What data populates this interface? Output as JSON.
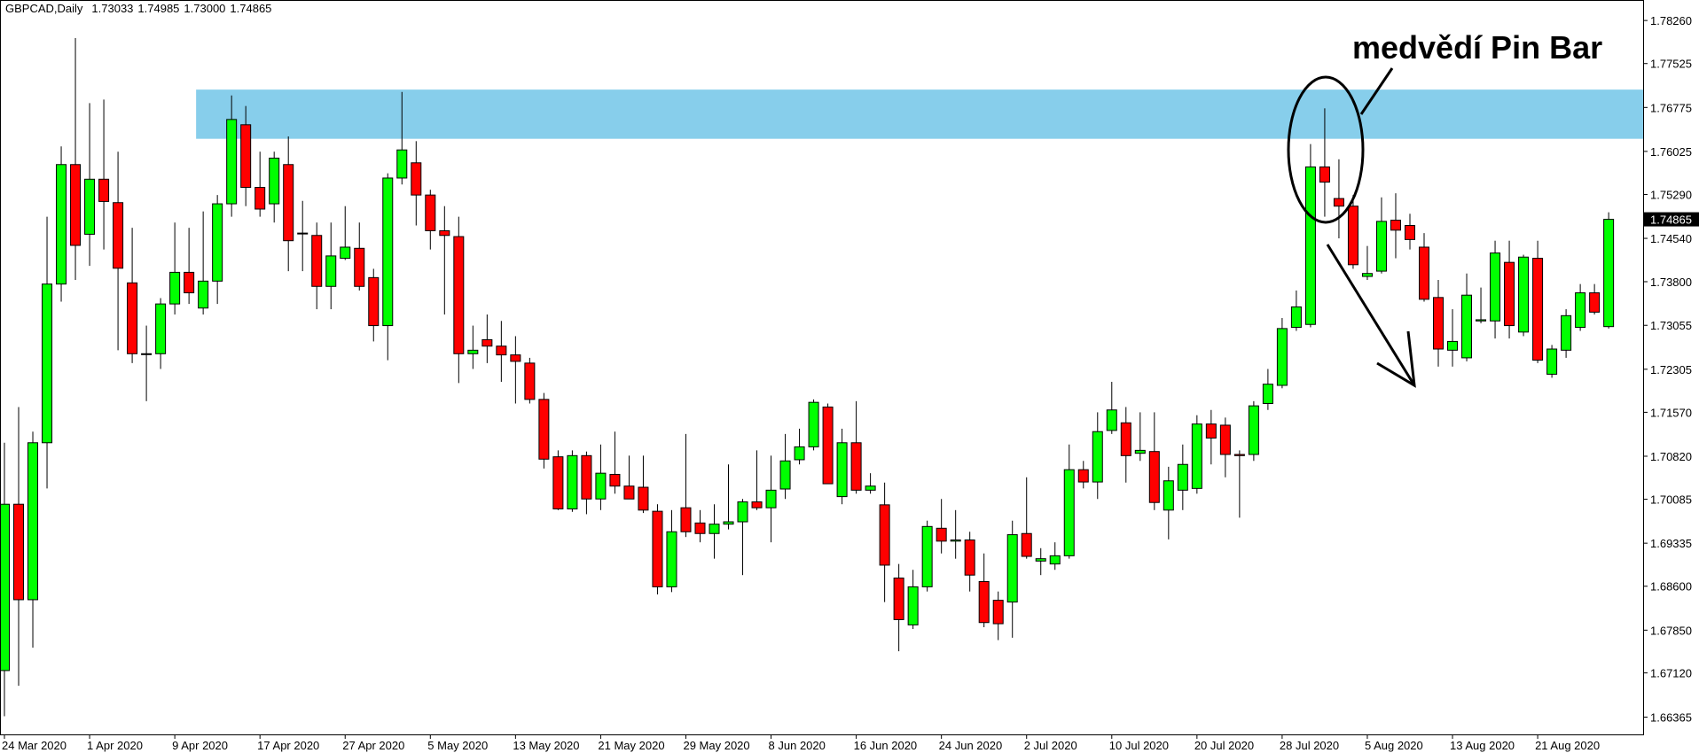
{
  "chart_data": {
    "type": "candlestick",
    "symbol": "GBPCAD,Daily",
    "header_values": [
      "1.73033",
      "1.74985",
      "1.73000",
      "1.74865"
    ],
    "categories": [
      "24 Mar 2020",
      null,
      null,
      null,
      null,
      null,
      "1 Apr 2020",
      null,
      null,
      null,
      null,
      null,
      "9 Apr 2020",
      null,
      null,
      null,
      null,
      null,
      "17 Apr 2020",
      null,
      null,
      null,
      null,
      null,
      "27 Apr 2020",
      null,
      null,
      null,
      null,
      null,
      "5 May 2020",
      null,
      null,
      null,
      null,
      null,
      "13 May 2020",
      null,
      null,
      null,
      null,
      null,
      "21 May 2020",
      null,
      null,
      null,
      null,
      null,
      "29 May 2020",
      null,
      null,
      null,
      null,
      null,
      "8 Jun 2020",
      null,
      null,
      null,
      null,
      null,
      "16 Jun 2020",
      null,
      null,
      null,
      null,
      null,
      "24 Jun 2020",
      null,
      null,
      null,
      null,
      null,
      "2 Jul 2020",
      null,
      null,
      null,
      null,
      null,
      "10 Jul 2020",
      null,
      null,
      null,
      null,
      null,
      "20 Jul 2020",
      null,
      null,
      null,
      null,
      null,
      "28 Jul 2020",
      null,
      null,
      null,
      null,
      null,
      "5 Aug 2020",
      null,
      null,
      null,
      null,
      null,
      "13 Aug 2020",
      null,
      null,
      null,
      null,
      null,
      "21 Aug 2020",
      null,
      null,
      null,
      null,
      null
    ],
    "open": [
      1.6716,
      1.7,
      1.6837,
      1.7105,
      1.7376,
      1.758,
      1.7461,
      1.7555,
      1.7515,
      1.7378,
      1.7257,
      1.7257,
      1.7342,
      1.7396,
      1.7335,
      1.7381,
      1.7513,
      1.7648,
      1.7541,
      1.7513,
      1.758,
      1.7463,
      1.7459,
      1.7372,
      1.742,
      1.7437,
      1.7387,
      1.7305,
      1.7557,
      1.7583,
      1.7528,
      1.7467,
      1.7457,
      1.7257,
      1.7281,
      1.727,
      1.7255,
      1.7241,
      1.7179,
      1.7081,
      1.6992,
      1.7083,
      1.7009,
      1.7051,
      1.7031,
      1.7029,
      1.6988,
      1.6859,
      1.6994,
      1.6968,
      1.695,
      1.6966,
      1.697,
      1.7004,
      1.6994,
      1.7026,
      1.7076,
      1.7098,
      1.7166,
      1.7013,
      1.7105,
      1.7024,
      1.6999,
      1.6874,
      1.6794,
      1.6859,
      1.6959,
      1.6937,
      1.6939,
      1.6868,
      1.6836,
      1.6833,
      1.695,
      1.6903,
      1.6898,
      1.6912,
      1.7059,
      1.7038,
      1.7126,
      1.7139,
      1.7087,
      1.709,
      1.699,
      1.7024,
      1.7027,
      1.7137,
      1.7135,
      1.7085,
      1.7085,
      1.7172,
      1.7203,
      1.7302,
      1.7307,
      1.7576,
      1.7522,
      1.7509,
      1.7389,
      1.7398,
      1.7485,
      1.7476,
      1.7439,
      1.7353,
      1.7263,
      1.725,
      1.7313,
      1.7313,
      1.7413,
      1.7294,
      1.742,
      1.7222,
      1.7263,
      1.7302,
      1.7361,
      1.73033
    ],
    "high": [
      1.7105,
      1.7166,
      1.7124,
      1.7491,
      1.7611,
      1.7796,
      1.7685,
      1.7691,
      1.7602,
      1.7472,
      1.7305,
      1.7352,
      1.7481,
      1.7472,
      1.75,
      1.7528,
      1.7698,
      1.768,
      1.7602,
      1.7602,
      1.7628,
      1.7518,
      1.7481,
      1.7481,
      1.7509,
      1.7481,
      1.7402,
      1.7565,
      1.7704,
      1.762,
      1.7537,
      1.7509,
      1.7491,
      1.7305,
      1.7324,
      1.7313,
      1.7287,
      1.725,
      1.719,
      1.7092,
      1.7092,
      1.709,
      1.7102,
      1.7124,
      1.7083,
      1.7083,
      1.7,
      1.699,
      1.712,
      1.699,
      1.7,
      1.7068,
      1.7009,
      1.7092,
      1.7083,
      1.712,
      1.7129,
      1.7179,
      1.7172,
      1.7129,
      1.7176,
      1.7053,
      1.7037,
      1.6898,
      1.6888,
      1.6972,
      1.7009,
      1.699,
      1.6953,
      1.6916,
      1.6851,
      1.6972,
      1.7046,
      1.6925,
      1.6935,
      1.7102,
      1.7074,
      1.7157,
      1.7209,
      1.7166,
      1.7157,
      1.7157,
      1.7064,
      1.7102,
      1.7152,
      1.7161,
      1.7148,
      1.7092,
      1.7176,
      1.7231,
      1.7318,
      1.7365,
      1.7615,
      1.7676,
      1.7589,
      1.7528,
      1.7441,
      1.7524,
      1.7531,
      1.7496,
      1.7463,
      1.7383,
      1.7333,
      1.7394,
      1.737,
      1.745,
      1.745,
      1.7426,
      1.745,
      1.7272,
      1.7333,
      1.7376,
      1.7376,
      1.74985
    ],
    "low": [
      1.6638,
      1.669,
      1.6755,
      1.7027,
      1.7346,
      1.7383,
      1.7407,
      1.7435,
      1.7263,
      1.7241,
      1.7176,
      1.7231,
      1.7324,
      1.7342,
      1.7324,
      1.7342,
      1.7491,
      1.7509,
      1.7491,
      1.7481,
      1.7398,
      1.7398,
      1.7333,
      1.7333,
      1.7417,
      1.7365,
      1.7278,
      1.7246,
      1.7546,
      1.7476,
      1.7435,
      1.7324,
      1.7207,
      1.7231,
      1.7241,
      1.7209,
      1.7172,
      1.7172,
      1.7061,
      1.699,
      1.6987,
      1.6983,
      1.699,
      1.7018,
      1.7009,
      1.6985,
      1.6846,
      1.685,
      1.6944,
      1.6935,
      1.6907,
      1.6957,
      1.6879,
      1.699,
      1.6935,
      1.7009,
      1.7068,
      1.7092,
      1.7035,
      1.7,
      1.7018,
      1.7018,
      1.6833,
      1.6749,
      1.6787,
      1.6851,
      1.6916,
      1.6907,
      1.6851,
      1.679,
      1.6768,
      1.6772,
      1.6907,
      1.6879,
      1.6888,
      1.6907,
      1.7027,
      1.7009,
      1.712,
      1.7037,
      1.7074,
      1.699,
      1.694,
      1.699,
      1.7018,
      1.7068,
      1.7046,
      1.6977,
      1.7074,
      1.7161,
      1.7198,
      1.7296,
      1.7302,
      1.7491,
      1.7454,
      1.7402,
      1.7383,
      1.7394,
      1.742,
      1.7435,
      1.7346,
      1.7235,
      1.7235,
      1.7244,
      1.7309,
      1.7283,
      1.7283,
      1.7287,
      1.7241,
      1.7216,
      1.725,
      1.7296,
      1.7324,
      1.73
    ],
    "close": [
      1.7,
      1.6837,
      1.7105,
      1.7376,
      1.758,
      1.7442,
      1.7555,
      1.7517,
      1.7403,
      1.7257,
      1.7257,
      1.7342,
      1.7396,
      1.7361,
      1.7381,
      1.7513,
      1.7657,
      1.7541,
      1.7504,
      1.7591,
      1.745,
      1.7463,
      1.7372,
      1.7424,
      1.7439,
      1.7372,
      1.7305,
      1.7557,
      1.7605,
      1.7528,
      1.7467,
      1.7459,
      1.7257,
      1.7263,
      1.727,
      1.7255,
      1.7244,
      1.7179,
      1.7077,
      1.6992,
      1.7083,
      1.7009,
      1.7053,
      1.7031,
      1.7009,
      1.699,
      1.6859,
      1.6953,
      1.6953,
      1.695,
      1.6966,
      1.697,
      1.7004,
      1.6994,
      1.7024,
      1.7074,
      1.7098,
      1.7174,
      1.7035,
      1.7105,
      1.7024,
      1.7031,
      1.6896,
      1.6803,
      1.6859,
      1.6962,
      1.6937,
      1.6939,
      1.6879,
      1.6798,
      1.6796,
      1.6948,
      1.6911,
      1.6907,
      1.6912,
      1.7059,
      1.7038,
      1.7124,
      1.7161,
      1.7083,
      1.7092,
      1.7003,
      1.704,
      1.7068,
      1.7137,
      1.7113,
      1.7085,
      1.7083,
      1.7168,
      1.7205,
      1.73,
      1.7337,
      1.7576,
      1.755,
      1.7509,
      1.7409,
      1.7394,
      1.7483,
      1.7468,
      1.7452,
      1.735,
      1.7265,
      1.7278,
      1.7357,
      1.7315,
      1.7429,
      1.7305,
      1.7422,
      1.7246,
      1.7265,
      1.7322,
      1.7361,
      1.7328,
      1.74865
    ],
    "up_color": "#00ff00",
    "down_color": "#ff0000",
    "ylim": [
      1.6607,
      1.7861
    ],
    "yticks": [
      {
        "value": 1.7826,
        "label": "1.78260"
      },
      {
        "value": 1.77525,
        "label": "1.77525"
      },
      {
        "value": 1.76775,
        "label": "1.76775"
      },
      {
        "value": 1.76025,
        "label": "1.76025"
      },
      {
        "value": 1.7529,
        "label": "1.75290"
      },
      {
        "value": 1.7454,
        "label": "1.74540"
      },
      {
        "value": 1.738,
        "label": "1.73800"
      },
      {
        "value": 1.73055,
        "label": "1.73055"
      },
      {
        "value": 1.72305,
        "label": "1.72305"
      },
      {
        "value": 1.7157,
        "label": "1.71570"
      },
      {
        "value": 1.7082,
        "label": "1.70820"
      },
      {
        "value": 1.70085,
        "label": "1.70085"
      },
      {
        "value": 1.69335,
        "label": "1.69335"
      },
      {
        "value": 1.686,
        "label": "1.68600"
      },
      {
        "value": 1.6785,
        "label": "1.67850"
      },
      {
        "value": 1.6712,
        "label": "1.67120"
      },
      {
        "value": 1.66365,
        "label": "1.66365"
      }
    ],
    "zone": {
      "from": 14,
      "low": 1.7624,
      "high": 1.7708,
      "color": "#87ceeb"
    },
    "annotation": "medvědí Pin Bar"
  }
}
